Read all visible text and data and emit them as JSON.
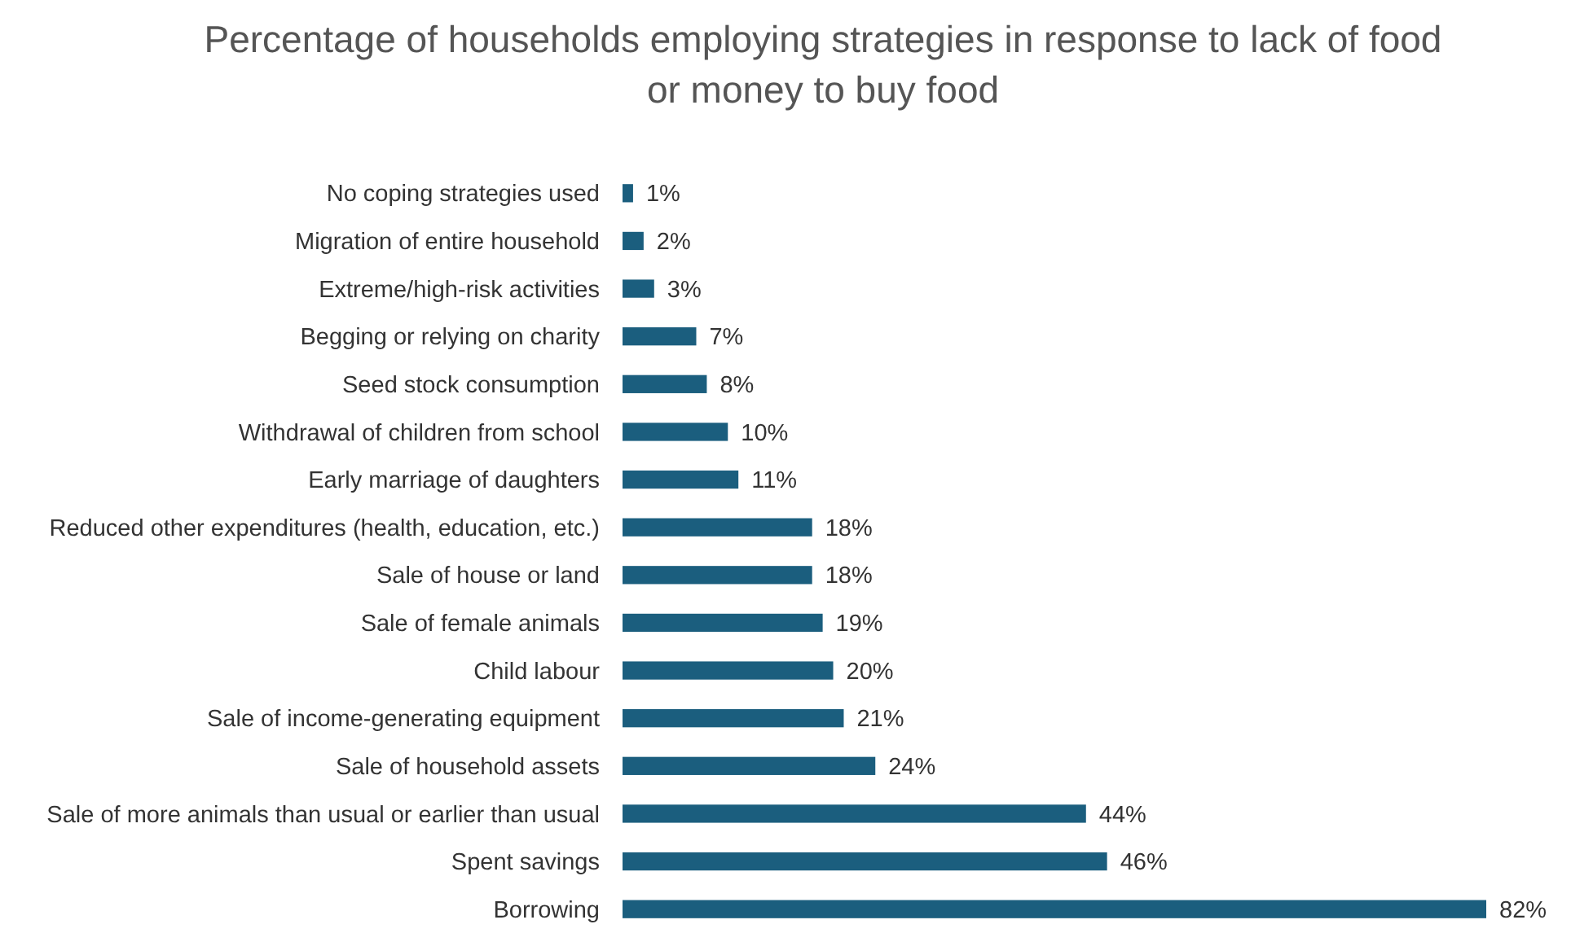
{
  "chart_data": {
    "type": "bar",
    "orientation": "horizontal",
    "title": "Percentage of households employing strategies in response to lack of food or money to buy food",
    "categories": [
      "No coping strategies used",
      "Migration of entire household",
      "Extreme/high-risk activities",
      "Begging or relying on charity ",
      "Seed stock consumption",
      "Withdrawal of children from school",
      "Early marriage of daughters",
      "Reduced other expenditures (health, education, etc.)",
      "Sale of house or land",
      "Sale of female animals",
      "Child labour",
      "Sale of income-generating equipment ",
      "Sale of household assets",
      "Sale of more animals than usual or earlier than usual",
      "Spent savings",
      "Borrowing"
    ],
    "values": [
      1,
      2,
      3,
      7,
      8,
      10,
      11,
      18,
      18,
      19,
      20,
      21,
      24,
      44,
      46,
      82
    ],
    "value_labels": [
      "1%",
      "2%",
      "3%",
      "7%",
      "8%",
      "10%",
      "11%",
      "18%",
      "18%",
      "19%",
      "20%",
      "21%",
      "24%",
      "44%",
      "46%",
      "82%"
    ],
    "color": "#1b5e7e"
  }
}
